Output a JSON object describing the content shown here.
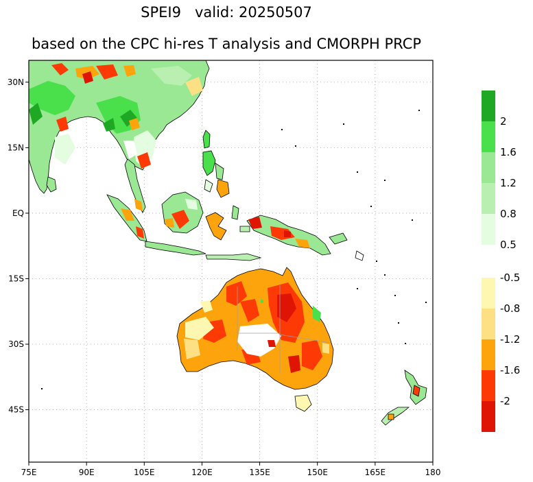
{
  "title": {
    "line1": "SPEI9   valid: 20250507",
    "line2": "based on the CPC hi-res T analysis and CMORPH PRCP"
  },
  "map": {
    "lon_range": [
      75,
      180
    ],
    "lat_range": [
      -57,
      35
    ],
    "x_ticks": [
      "75E",
      "90E",
      "105E",
      "120E",
      "135E",
      "150E",
      "165E",
      "180"
    ],
    "x_tick_lons": [
      75,
      90,
      105,
      120,
      135,
      150,
      165,
      180
    ],
    "y_ticks": [
      "30N",
      "15N",
      "EQ",
      "15S",
      "30S",
      "45S"
    ],
    "y_tick_lats": [
      30,
      15,
      0,
      -15,
      -30,
      -45
    ],
    "grid": "dotted",
    "colors": {
      "coast": "#000000",
      "borders": "#a0a0a0",
      "grid": "#a0a0a0"
    }
  },
  "legend": {
    "wet": {
      "colors": [
        "#1fa824",
        "#49e04c",
        "#9ae894",
        "#b9f0b1",
        "#e4fde0"
      ],
      "labels": [
        "2",
        "1.6",
        "1.2",
        "0.8",
        "0.5"
      ]
    },
    "dry": {
      "colors": [
        "#fdf7b2",
        "#fde084",
        "#fda40c",
        "#fd3a06",
        "#e01404"
      ],
      "labels": [
        "-0.5",
        "-0.8",
        "-1.2",
        "-1.6",
        "-2"
      ]
    }
  }
}
